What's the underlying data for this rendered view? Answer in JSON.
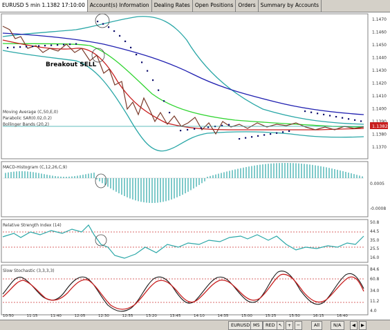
{
  "tabs": [
    {
      "label": "EURUSD 5 min 1.1382 17:10:00",
      "active": true
    },
    {
      "label": "Account(s) Information",
      "active": false
    },
    {
      "label": "Dealing Rates",
      "active": false
    },
    {
      "label": "Open Positions",
      "active": false
    },
    {
      "label": "Orders",
      "active": false
    },
    {
      "label": "Summary by Accounts",
      "active": false
    }
  ],
  "price_panel": {
    "legend_ma": "Moving Average (C,50,E,0)",
    "legend_sar": "Parabolic SAR(0.02,0.2)",
    "legend_bb": "Bollinger Bands (20,2)",
    "annotation": "Breakout SELL",
    "y_ticks": [
      "1.1470",
      "1.1460",
      "1.1450",
      "1.1440",
      "1.1430",
      "1.1420",
      "1.1410",
      "1.1400",
      "1.1390",
      "1.1380",
      "1.1370"
    ],
    "current_price": "1.1382"
  },
  "macd_panel": {
    "legend": "MACD-Histogram (C,12,26,C,9)",
    "y_ticks": [
      "0.0005",
      "-0.0008"
    ]
  },
  "rsi_panel": {
    "legend": "Relative Strength Index (14)",
    "y_ticks": [
      "50.8",
      "44.5",
      "35.0",
      "25.5",
      "16.0"
    ]
  },
  "stoch_panel": {
    "legend": "Slow Stochastic (3,3,3,3)",
    "y_ticks": [
      "84.6",
      "60.8",
      "34.0",
      "11.2",
      "4.0"
    ]
  },
  "x_ticks": [
    "10:50",
    "11:15",
    "11:40",
    "12:05",
    "12:30",
    "12:55",
    "13:20",
    "13:45",
    "14:10",
    "14:35",
    "15:00",
    "15:25",
    "15:50",
    "16:15",
    "16:40"
  ],
  "bottom_buttons": [
    "EURUSD",
    "M5",
    "RED",
    "All",
    "N/A"
  ],
  "colors": {
    "upper_band": "#2aa7a7",
    "ma_blue": "#1f1fb0",
    "ma_green": "#2fd42f",
    "ma_red": "#c81e1e",
    "price": "#7a3a2a",
    "sar": "#0a0a6a",
    "histogram": "#2aa7a7",
    "rsi": "#2aa7a7",
    "stoch_fast": "#1a1a1a",
    "stoch_slow": "#c81e1e",
    "dashed": "#cc3333"
  }
}
